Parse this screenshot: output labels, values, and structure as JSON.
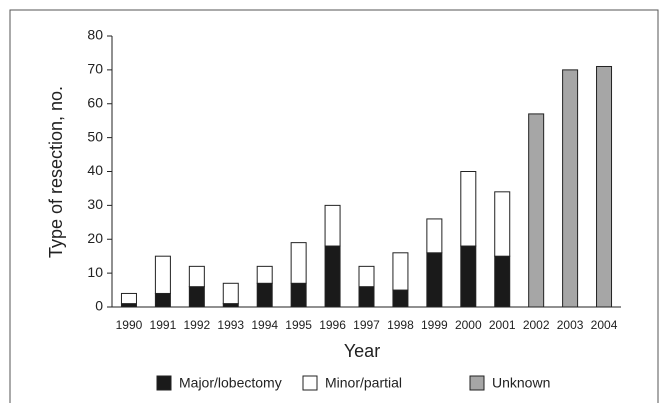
{
  "chart_data": {
    "type": "stacked-bar",
    "xlabel": "Year",
    "ylabel": "Type of resection, no.",
    "categories": [
      "1990",
      "1991",
      "1992",
      "1993",
      "1994",
      "1995",
      "1996",
      "1997",
      "1998",
      "1999",
      "2000",
      "2001",
      "2002",
      "2003",
      "2004"
    ],
    "series": [
      {
        "name": "Major/lobectomy",
        "color": "#1a1a1a",
        "values": [
          1,
          4,
          6,
          1,
          7,
          7,
          18,
          6,
          5,
          16,
          18,
          15,
          null,
          null,
          null
        ]
      },
      {
        "name": "Minor/partial",
        "color": "#ffffff",
        "values": [
          3,
          11,
          6,
          6,
          5,
          12,
          12,
          6,
          11,
          10,
          22,
          19,
          null,
          null,
          null
        ]
      },
      {
        "name": "Unknown",
        "color": "#a6a6a6",
        "values": [
          null,
          null,
          null,
          null,
          null,
          null,
          null,
          null,
          null,
          null,
          null,
          null,
          57,
          70,
          71
        ]
      }
    ],
    "ylim": [
      0,
      80
    ],
    "yticks": [
      0,
      10,
      20,
      30,
      40,
      50,
      60,
      70,
      80
    ]
  }
}
